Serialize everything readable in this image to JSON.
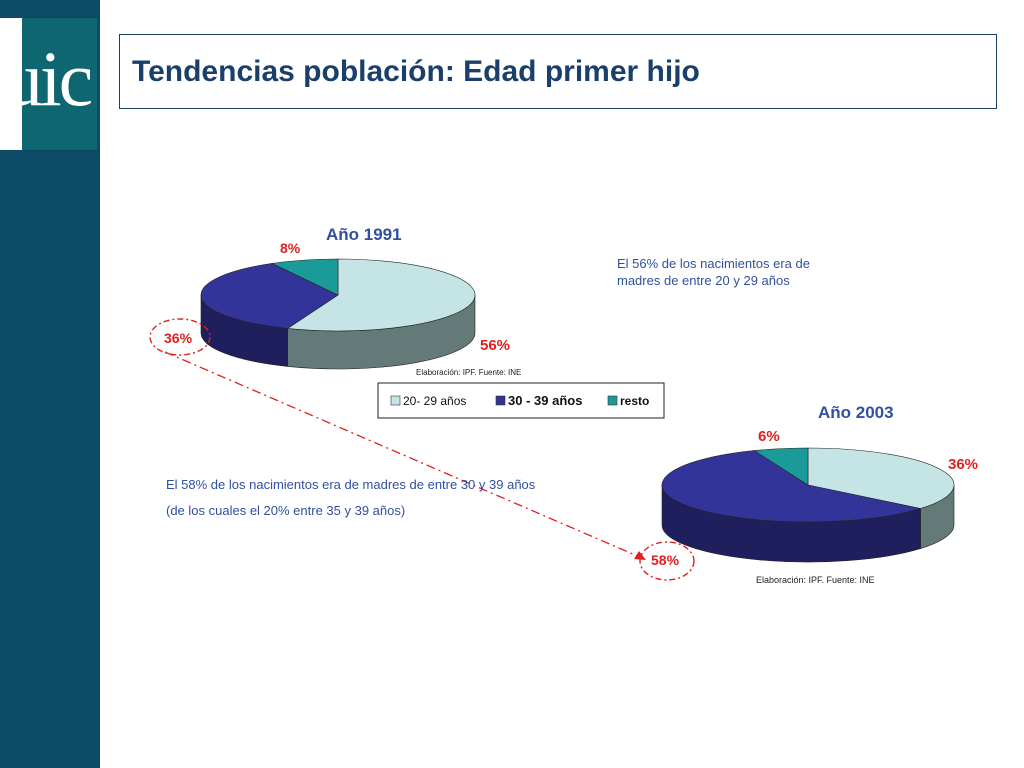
{
  "logo": {
    "text": "uic"
  },
  "page": {
    "title": "Tendencias población: Edad primer hijo"
  },
  "colors": {
    "sidebar": "#0c4a66",
    "logo_bg": "#0e6670",
    "title": "#1b3f6b",
    "series_20_29": "#c4e4e6",
    "series_30_39": "#33349a",
    "series_resto": "#1b9a9a",
    "highlight_red": "#e02020",
    "annotation_blue": "#3050a0"
  },
  "chart_data": [
    {
      "type": "pie",
      "title": "Año 1991",
      "series": [
        {
          "name": "20- 29 años",
          "value": 56,
          "label": "56%"
        },
        {
          "name": "30 - 39 años",
          "value": 36,
          "label": "36%"
        },
        {
          "name": "resto",
          "value": 8,
          "label": "8%"
        }
      ],
      "source": "Elaboración: IPF. Fuente: INE"
    },
    {
      "type": "pie",
      "title": "Año 2003",
      "series": [
        {
          "name": "20- 29 años",
          "value": 36,
          "label": "36%"
        },
        {
          "name": "30 - 39 años",
          "value": 58,
          "label": "58%"
        },
        {
          "name": "resto",
          "value": 6,
          "label": "6%"
        }
      ],
      "source": "Elaboración: IPF. Fuente: INE"
    }
  ],
  "legend": {
    "items": [
      "20- 29 años",
      "30 - 39 años",
      "resto"
    ]
  },
  "annotations": {
    "note_1991_line1": "El 56% de los nacimientos era de",
    "note_1991_line2": "madres de entre 20 y 29 años",
    "note_2003_line1": "El 58% de los nacimientos era de madres de entre 30 y 39 años",
    "note_2003_line2": "(de los cuales el 20% entre 35 y 39 años)"
  }
}
